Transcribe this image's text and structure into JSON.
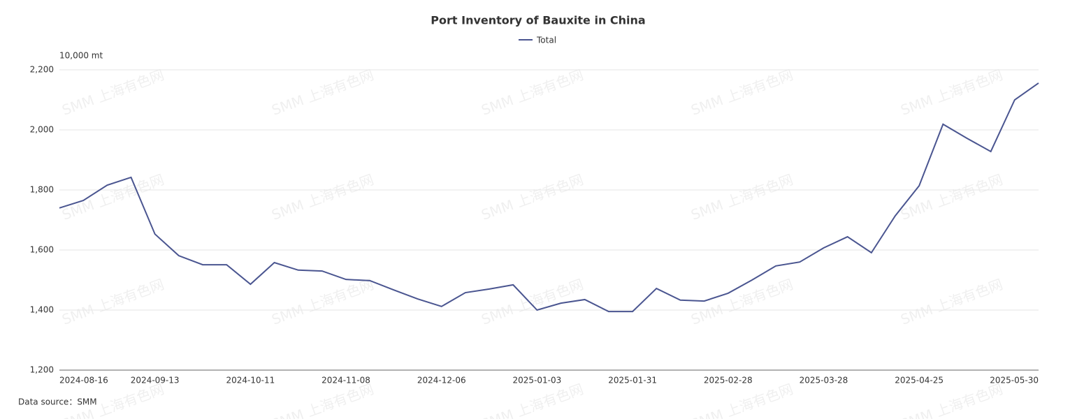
{
  "chart_data": {
    "type": "line",
    "title": "Port Inventory of Bauxite in China",
    "y_label": "10,000 mt",
    "source": "Data source：SMM",
    "watermark": "SMM 上海有色网",
    "categories": [
      "2024-08-16",
      null,
      null,
      null,
      "2024-09-13",
      null,
      null,
      null,
      "2024-10-11",
      null,
      null,
      null,
      "2024-11-08",
      null,
      null,
      null,
      "2024-12-06",
      null,
      null,
      null,
      "2025-01-03",
      null,
      null,
      null,
      "2025-01-31",
      null,
      null,
      null,
      "2025-02-28",
      null,
      null,
      null,
      "2025-03-28",
      null,
      null,
      null,
      "2025-04-25",
      null,
      null,
      null,
      null,
      "2025-05-30"
    ],
    "series": [
      {
        "name": "Total",
        "color": "#4a5590",
        "values": [
          1740,
          1765,
          1816,
          1842,
          1653,
          1581,
          1551,
          1551,
          1486,
          1558,
          1533,
          1530,
          1502,
          1498,
          1467,
          1437,
          1412,
          1458,
          1470,
          1484,
          1400,
          1423,
          1435,
          1395,
          1395,
          1472,
          1433,
          1430,
          1456,
          1500,
          1547,
          1560,
          1607,
          1644,
          1591,
          1714,
          1814,
          2019,
          1972,
          1928,
          2100,
          2156
        ]
      }
    ],
    "ylim": [
      1200,
      2200
    ],
    "yticks": [
      {
        "value": 1200,
        "label": "1,200"
      },
      {
        "value": 1400,
        "label": "1,400"
      },
      {
        "value": 1600,
        "label": "1,600"
      },
      {
        "value": 1800,
        "label": "1,800"
      },
      {
        "value": 2000,
        "label": "2,000"
      },
      {
        "value": 2200,
        "label": "2,200"
      }
    ],
    "grid": true,
    "legend": "top"
  }
}
